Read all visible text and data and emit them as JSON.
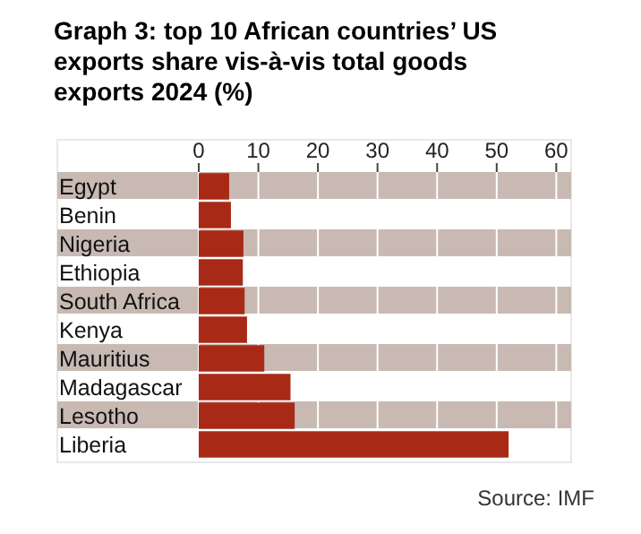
{
  "chart_data": {
    "type": "bar",
    "orientation": "horizontal",
    "title": "Graph 3: top 10 African countries’ US exports share vis-à-vis total goods exports 2024 (%)",
    "categories": [
      "Egypt",
      "Benin",
      "Nigeria",
      "Ethiopia",
      "South Africa",
      "Kenya",
      "Mauritius",
      "Madagascar",
      "Lesotho",
      "Liberia"
    ],
    "values": [
      5.1,
      5.4,
      7.5,
      7.4,
      7.7,
      8.1,
      11.0,
      15.4,
      16.1,
      52.0
    ],
    "color": "#a82a16",
    "xlim": [
      0,
      62.5
    ],
    "xticks": [
      0,
      10,
      20,
      30,
      40,
      50,
      60
    ],
    "grid": "x",
    "annotations": [
      "Source: IMF"
    ]
  }
}
